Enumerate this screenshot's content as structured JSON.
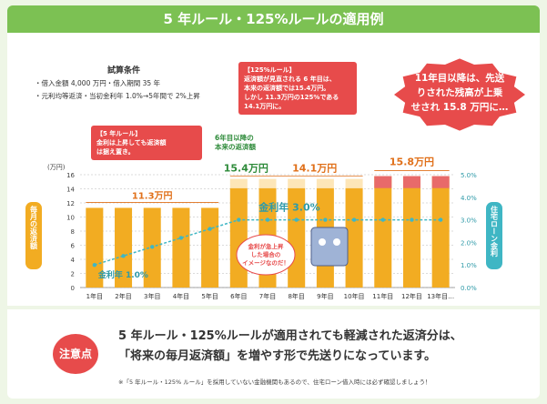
{
  "header": {
    "title": "5 年ルール・125%ルールの適用例"
  },
  "conditions": {
    "title": "試算条件",
    "line1": "・借入金額 4,000 万円・借入期間 35 年",
    "line2": "・元利均等返済・当初金利年 1.0%→5年間で 2%上昇"
  },
  "callouts": {
    "five_year": {
      "title": "【5 年ルール】",
      "body1": "金利は上昇しても返済額",
      "body2": "は据え置き。"
    },
    "rule125": {
      "title": "【125%ルール】",
      "body1": "返済額が見直される 6 年目は、",
      "body2": "本来の返済額では15.4万円。",
      "body3": "しかし 11.3万円の125%である",
      "body4": "14.1万円に。"
    },
    "burst": {
      "line1": "11年目以降は、先送",
      "line2": "りされた残高が上乗",
      "line3": "せされ 15.8 万円に…"
    },
    "sixth_year": {
      "line1": "6年目以降の",
      "line2": "本来の返済額"
    },
    "mascot": {
      "line1": "金利が急上昇",
      "line2": "した場合の",
      "line3": "イメージなのだ！"
    }
  },
  "labels": {
    "left_axis": "毎月の返済額",
    "right_axis": "住宅ローン金利",
    "left_unit": "(万円)",
    "rate_early": "金利年 1.0%",
    "rate_late": "金利年 3.0%",
    "val_113": "11.3万円",
    "val_154": "15.4万円",
    "val_141": "14.1万円",
    "val_158": "15.8万円"
  },
  "chart_data": {
    "type": "bar",
    "categories": [
      "1年目",
      "2年目",
      "3年目",
      "4年目",
      "5年目",
      "6年目",
      "7年目",
      "8年目",
      "9年目",
      "10年目",
      "11年目",
      "12年目",
      "13年目…"
    ],
    "series": [
      {
        "values": [
          11.3,
          11.3,
          11.3,
          11.3,
          11.3,
          14.1,
          14.1,
          14.1,
          14.1,
          14.1,
          15.8,
          15.8,
          15.8
        ],
        "color": "#f2ac22"
      },
      {
        "values": [
          0,
          0,
          0,
          0,
          0,
          1.3,
          1.3,
          1.3,
          1.3,
          1.3,
          0,
          0,
          0
        ],
        "color": "#fde6b8"
      },
      {
        "values": [
          0,
          0,
          0,
          0,
          0,
          0,
          0,
          0,
          0,
          0,
          0,
          0,
          0
        ],
        "color": "#e86a6a"
      }
    ],
    "rate": {
      "values": [
        1.0,
        1.4,
        1.8,
        2.2,
        2.6,
        3.0,
        3.0,
        3.0,
        3.0,
        3.0,
        3.0,
        3.0,
        3.0
      ],
      "color": "#3fb6c4"
    },
    "yticks": [
      "0",
      "2",
      "4",
      "6",
      "8",
      "10",
      "12",
      "14",
      "16"
    ],
    "y2ticks": [
      "0.0%",
      "1.0%",
      "2.0%",
      "3.0%",
      "4.0%",
      "5.0%"
    ],
    "ylim": [
      0,
      16
    ],
    "y2lim": [
      0,
      5
    ],
    "grid": true
  },
  "note": {
    "badge": "注意点",
    "line1": "5 年ルール・125%ルールが適用されても軽減された返済分は、",
    "line2": "「将来の毎月返済額」を増やす形で先送りになっています。",
    "foot": "※「5 年ルール・125% ルール」を採用していない金融機関もあるので、住宅ローン借入時には必ず確認しましょう！"
  }
}
